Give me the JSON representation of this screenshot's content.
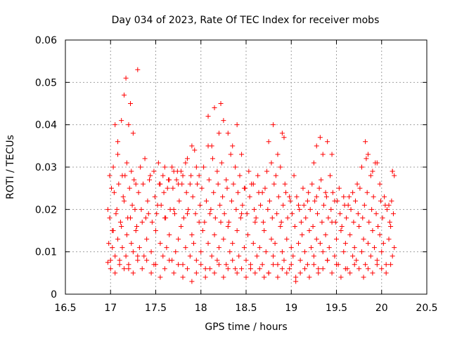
{
  "chart_data": {
    "type": "scatter",
    "title": "Day 034 of 2023, Rate Of TEC Index for receiver mobs",
    "xlabel": "GPS time / hours",
    "ylabel": "ROTI / TECUs",
    "xlim": [
      16.5,
      20.5
    ],
    "ylim": [
      0,
      0.06
    ],
    "xticks": [
      "16.5",
      "17",
      "17.5",
      "18",
      "18.5",
      "19",
      "19.5",
      "20",
      "20.5"
    ],
    "yticks": [
      "0",
      "0.01",
      "0.02",
      "0.03",
      "0.04",
      "0.05",
      "0.06"
    ],
    "grid": true,
    "marker": "plus",
    "color": "#ff0000",
    "series": [
      {
        "x": [
          16.97,
          16.98,
          16.99,
          17.0,
          17.01,
          17.02,
          17.03,
          17.05,
          17.07,
          17.08,
          17.1,
          17.12,
          17.13,
          17.15,
          17.17,
          17.18,
          17.2,
          17.22,
          17.23,
          17.25,
          17.27,
          17.28,
          17.3,
          17.32,
          17.35,
          17.37,
          17.4,
          17.42,
          17.45,
          17.48,
          17.5,
          17.52,
          17.55,
          17.58,
          17.6,
          17.62,
          17.65,
          17.68,
          17.7,
          17.72,
          17.75,
          17.78,
          17.8,
          17.83,
          17.85,
          17.88,
          17.9,
          17.92,
          17.95,
          17.98,
          18.0,
          18.02,
          18.05,
          18.08,
          18.1,
          18.12,
          18.15,
          18.18,
          18.2,
          18.22,
          18.25,
          18.28,
          18.3,
          18.32,
          18.35,
          18.38,
          18.4,
          18.42,
          18.45,
          18.48,
          18.5,
          18.52,
          18.55,
          18.58,
          18.6,
          18.62,
          18.65,
          18.68,
          18.7,
          18.72,
          18.75,
          18.78,
          18.8,
          18.82,
          18.85,
          18.88,
          18.9,
          18.92,
          18.95,
          18.98,
          19.0,
          19.02,
          19.05,
          19.08,
          19.1,
          19.12,
          19.15,
          19.18,
          19.2,
          19.22,
          19.25,
          19.28,
          19.3,
          19.32,
          19.35,
          19.38,
          19.4,
          19.42,
          19.45,
          19.48,
          19.5,
          19.52,
          19.55,
          19.58,
          19.6,
          19.62,
          19.65,
          19.68,
          19.7,
          19.72,
          19.75,
          19.78,
          19.8,
          19.82,
          19.85,
          19.88,
          19.9,
          19.92,
          19.95,
          19.98,
          20.0,
          20.02,
          20.05,
          20.08,
          20.1,
          20.12,
          20.14,
          16.97,
          16.99,
          17.02,
          17.04,
          17.06,
          17.09,
          17.11,
          17.14,
          17.16,
          17.19,
          17.21,
          17.24,
          17.26,
          17.29,
          17.31,
          17.34,
          17.36,
          17.39,
          17.41,
          17.44,
          17.46,
          17.49,
          17.51,
          17.54,
          17.56,
          17.59,
          17.61,
          17.64,
          17.66,
          17.69,
          17.71,
          17.74,
          17.76,
          17.79,
          17.81,
          17.84,
          17.86,
          17.89,
          17.91,
          17.94,
          17.96,
          17.99,
          18.01,
          18.04,
          18.06,
          18.09,
          18.11,
          18.14,
          18.16,
          18.19,
          18.21,
          18.24,
          18.26,
          18.29,
          18.31,
          18.34,
          18.36,
          18.39,
          18.41,
          18.44,
          18.46,
          18.49,
          18.51,
          18.54,
          18.56,
          18.59,
          18.61,
          18.64,
          18.66,
          18.69,
          18.71,
          18.74,
          18.76,
          18.79,
          18.81,
          18.84,
          18.86,
          18.89,
          18.91,
          18.94,
          18.96,
          18.99,
          19.01,
          19.04,
          19.06,
          19.09,
          19.11,
          19.14,
          19.16,
          19.19,
          19.21,
          19.24,
          19.26,
          19.29,
          19.31,
          19.34,
          19.36,
          19.39,
          19.41,
          19.44,
          19.46,
          19.49,
          19.51,
          19.54,
          19.56,
          19.59,
          19.61,
          19.64,
          19.66,
          19.69,
          19.71,
          19.74,
          19.76,
          19.79,
          19.81,
          19.84,
          19.86,
          19.89,
          19.91,
          19.94,
          19.96,
          19.99,
          20.01,
          20.04,
          20.06,
          20.09,
          20.11,
          20.13,
          17.0,
          17.05,
          17.1,
          17.15,
          17.2,
          17.25,
          17.3,
          17.35,
          17.4,
          17.45,
          17.5,
          17.55,
          17.6,
          17.65,
          17.7,
          17.75,
          17.8,
          17.85,
          17.9,
          17.95,
          18.0,
          18.05,
          18.1,
          18.15,
          18.2,
          18.25,
          18.3,
          18.35,
          18.4,
          18.45,
          18.5,
          18.55,
          18.6,
          18.65,
          18.7,
          18.75,
          18.8,
          18.85,
          18.9,
          18.95,
          19.0,
          19.05,
          19.1,
          19.15,
          19.2,
          19.25,
          19.3,
          19.35,
          19.4,
          19.45,
          19.5,
          19.55,
          19.6,
          19.65,
          19.7,
          19.75,
          19.8,
          19.85,
          19.9,
          19.95,
          20.0,
          20.05,
          20.1,
          17.03,
          17.08,
          17.13,
          17.18,
          17.23,
          17.28,
          17.33,
          17.38,
          17.43,
          17.48,
          17.53,
          17.58,
          17.63,
          17.68,
          17.73,
          17.78,
          17.83,
          17.88,
          17.93,
          17.98,
          18.03,
          18.08,
          18.13,
          18.18,
          18.23,
          18.28,
          18.33,
          18.38,
          18.43,
          18.48,
          18.53,
          18.58,
          18.63,
          18.68,
          18.73,
          18.78,
          18.83,
          18.88,
          18.93,
          18.98,
          19.03,
          19.08,
          19.13,
          19.18,
          19.23,
          19.28,
          19.33,
          19.38,
          19.43,
          19.48,
          19.53,
          19.58,
          19.63,
          19.68,
          19.73,
          19.78,
          19.83,
          19.88,
          19.93,
          19.98,
          20.03,
          20.08,
          20.12,
          17.15,
          17.17,
          17.2,
          17.22,
          17.25,
          17.3,
          17.05,
          17.08,
          17.12,
          18.08,
          18.12,
          18.15,
          18.2,
          18.22,
          18.25,
          18.3,
          18.35,
          18.4,
          18.45,
          18.75,
          18.8,
          18.85,
          18.9,
          18.92,
          19.25,
          19.28,
          19.32,
          19.35,
          19.4,
          19.45,
          19.78,
          19.82,
          19.85,
          19.9,
          19.95,
          20.12,
          20.14,
          17.55,
          17.6,
          17.65,
          17.7,
          17.75,
          17.8,
          17.85,
          17.9,
          17.95
        ],
        "y": [
          0.0075,
          0.012,
          0.018,
          0.008,
          0.025,
          0.011,
          0.015,
          0.009,
          0.02,
          0.013,
          0.007,
          0.016,
          0.011,
          0.022,
          0.009,
          0.014,
          0.006,
          0.018,
          0.012,
          0.01,
          0.02,
          0.015,
          0.008,
          0.011,
          0.017,
          0.009,
          0.013,
          0.019,
          0.01,
          0.007,
          0.015,
          0.021,
          0.012,
          0.009,
          0.018,
          0.011,
          0.014,
          0.008,
          0.02,
          0.01,
          0.013,
          0.016,
          0.007,
          0.011,
          0.019,
          0.009,
          0.014,
          0.012,
          0.008,
          0.017,
          0.01,
          0.015,
          0.006,
          0.012,
          0.019,
          0.009,
          0.014,
          0.008,
          0.011,
          0.017,
          0.013,
          0.007,
          0.016,
          0.01,
          0.012,
          0.006,
          0.015,
          0.009,
          0.019,
          0.011,
          0.008,
          0.014,
          0.006,
          0.012,
          0.017,
          0.009,
          0.011,
          0.007,
          0.015,
          0.01,
          0.005,
          0.013,
          0.009,
          0.012,
          0.007,
          0.016,
          0.01,
          0.008,
          0.013,
          0.006,
          0.011,
          0.009,
          0.004,
          0.012,
          0.008,
          0.014,
          0.01,
          0.007,
          0.015,
          0.011,
          0.009,
          0.013,
          0.006,
          0.012,
          0.01,
          0.014,
          0.008,
          0.011,
          0.017,
          0.009,
          0.013,
          0.007,
          0.015,
          0.01,
          0.012,
          0.006,
          0.014,
          0.009,
          0.011,
          0.008,
          0.016,
          0.01,
          0.013,
          0.007,
          0.012,
          0.009,
          0.015,
          0.011,
          0.008,
          0.014,
          0.01,
          0.012,
          0.007,
          0.013,
          0.016,
          0.009,
          0.011,
          0.02,
          0.028,
          0.015,
          0.024,
          0.019,
          0.026,
          0.017,
          0.023,
          0.028,
          0.018,
          0.025,
          0.021,
          0.027,
          0.016,
          0.024,
          0.02,
          0.026,
          0.018,
          0.022,
          0.028,
          0.017,
          0.023,
          0.019,
          0.026,
          0.021,
          0.024,
          0.018,
          0.027,
          0.02,
          0.025,
          0.019,
          0.029,
          0.022,
          0.026,
          0.018,
          0.024,
          0.02,
          0.028,
          0.023,
          0.019,
          0.026,
          0.021,
          0.025,
          0.017,
          0.022,
          0.027,
          0.02,
          0.024,
          0.018,
          0.026,
          0.021,
          0.023,
          0.019,
          0.025,
          0.017,
          0.022,
          0.026,
          0.02,
          0.024,
          0.018,
          0.021,
          0.025,
          0.019,
          0.023,
          0.026,
          0.02,
          0.018,
          0.024,
          0.021,
          0.017,
          0.025,
          0.02,
          0.022,
          0.018,
          0.026,
          0.019,
          0.023,
          0.017,
          0.021,
          0.024,
          0.018,
          0.022,
          0.019,
          0.016,
          0.023,
          0.02,
          0.017,
          0.021,
          0.018,
          0.024,
          0.02,
          0.016,
          0.022,
          0.019,
          0.025,
          0.017,
          0.021,
          0.023,
          0.018,
          0.02,
          0.024,
          0.017,
          0.022,
          0.019,
          0.016,
          0.021,
          0.018,
          0.023,
          0.02,
          0.017,
          0.022,
          0.019,
          0.025,
          0.018,
          0.021,
          0.024,
          0.017,
          0.02,
          0.023,
          0.019,
          0.016,
          0.022,
          0.018,
          0.021,
          0.02,
          0.017,
          0.022,
          0.019,
          0.006,
          0.005,
          0.008,
          0.006,
          0.007,
          0.005,
          0.009,
          0.006,
          0.008,
          0.005,
          0.007,
          0.004,
          0.006,
          0.008,
          0.005,
          0.007,
          0.004,
          0.006,
          0.003,
          0.005,
          0.007,
          0.004,
          0.006,
          0.005,
          0.007,
          0.004,
          0.006,
          0.008,
          0.005,
          0.006,
          0.004,
          0.007,
          0.005,
          0.006,
          0.004,
          0.005,
          0.007,
          0.004,
          0.006,
          0.005,
          0.007,
          0.003,
          0.005,
          0.006,
          0.004,
          0.007,
          0.005,
          0.006,
          0.008,
          0.005,
          0.007,
          0.004,
          0.006,
          0.005,
          0.007,
          0.006,
          0.004,
          0.006,
          0.005,
          0.007,
          0.006,
          0.005,
          0.007,
          0.03,
          0.033,
          0.028,
          0.031,
          0.029,
          0.026,
          0.03,
          0.032,
          0.027,
          0.029,
          0.031,
          0.028,
          0.025,
          0.03,
          0.027,
          0.029,
          0.031,
          0.026,
          0.034,
          0.028,
          0.03,
          0.035,
          0.032,
          0.029,
          0.031,
          0.027,
          0.033,
          0.03,
          0.028,
          0.025,
          0.029,
          0.026,
          0.028,
          0.024,
          0.029,
          0.031,
          0.028,
          0.03,
          0.026,
          0.023,
          0.028,
          0.021,
          0.025,
          0.022,
          0.026,
          0.023,
          0.027,
          0.024,
          0.028,
          0.022,
          0.025,
          0.023,
          0.021,
          0.024,
          0.026,
          0.03,
          0.032,
          0.028,
          0.031,
          0.026,
          0.023,
          0.021,
          0.029,
          0.047,
          0.051,
          0.04,
          0.045,
          0.038,
          0.053,
          0.04,
          0.036,
          0.041,
          0.042,
          0.035,
          0.044,
          0.038,
          0.045,
          0.041,
          0.038,
          0.035,
          0.04,
          0.033,
          0.036,
          0.04,
          0.033,
          0.038,
          0.037,
          0.031,
          0.035,
          0.037,
          0.033,
          0.036,
          0.033,
          0.03,
          0.036,
          0.033,
          0.029,
          0.031,
          0.029,
          0.028,
          0.026,
          0.03,
          0.027,
          0.029,
          0.026,
          0.028,
          0.032,
          0.035,
          0.03
        ]
      }
    ]
  }
}
